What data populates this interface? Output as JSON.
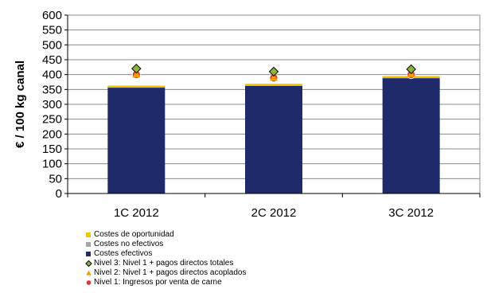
{
  "chart_data": {
    "type": "bar",
    "stacked": true,
    "categories": [
      "1C 2012",
      "2C 2012",
      "3C 2012"
    ],
    "ylabel": "€ / 100 kg canal",
    "ylim": [
      0,
      600
    ],
    "yticks": [
      0,
      50,
      100,
      150,
      200,
      250,
      300,
      350,
      400,
      450,
      500,
      550,
      600
    ],
    "grid": true,
    "legend_position": "bottom",
    "series": [
      {
        "name": "Costes efectivos",
        "kind": "bar",
        "color": "#1f2a6b",
        "values": [
          356,
          362,
          388
        ]
      },
      {
        "name": "Costes no efectivos",
        "kind": "bar",
        "color": "#a6a6a6",
        "values": [
          2,
          2,
          2
        ]
      },
      {
        "name": "Costes de oportunidad",
        "kind": "bar",
        "color": "#f5c400",
        "values": [
          5,
          5,
          5
        ]
      },
      {
        "name": "Nivel 3: Nivel 1 + pagos directos totales",
        "kind": "marker",
        "marker": "diamond",
        "color": "#8db33a",
        "values": [
          420,
          410,
          418
        ]
      },
      {
        "name": "Nivel 2: Nivel 1 + pagos directos acoplados",
        "kind": "marker",
        "marker": "triangle",
        "color": "#f59a00",
        "values": [
          401,
          390,
          402
        ]
      },
      {
        "name": "Nivel 1: Ingresos por venta de carne",
        "kind": "marker",
        "marker": "circle",
        "color": "#e8322d",
        "values": [
          400,
          389,
          400
        ]
      }
    ],
    "legend_order": [
      "Costes de oportunidad",
      "Costes no efectivos",
      "Costes efectivos",
      "Nivel 3: Nivel 1 + pagos directos totales",
      "Nivel 2: Nivel 1 + pagos directos acoplados",
      "Nivel 1: Ingresos por venta de carne"
    ]
  }
}
